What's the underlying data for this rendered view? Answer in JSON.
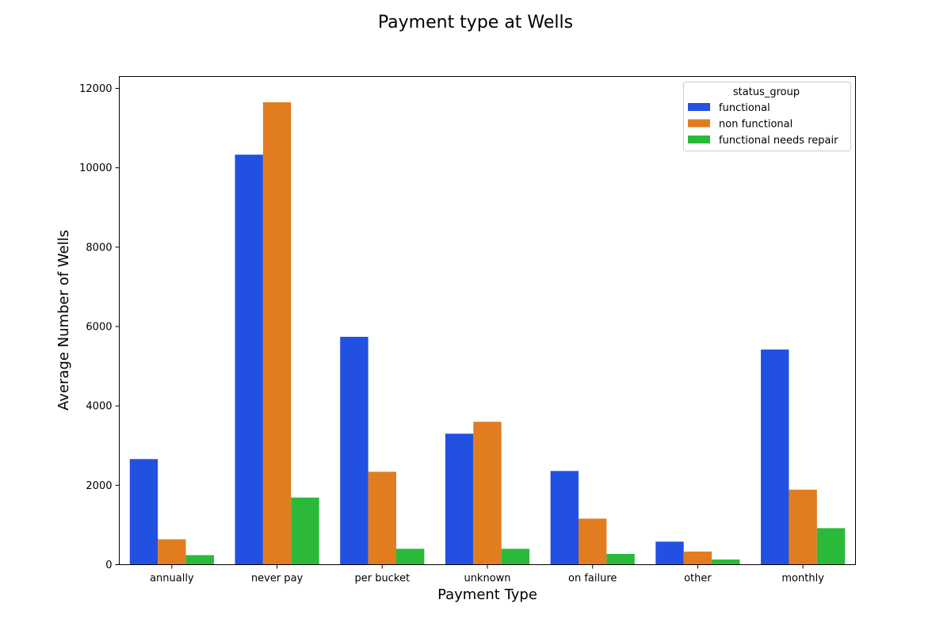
{
  "chart_data": {
    "type": "bar",
    "title": "Payment type at Wells",
    "xlabel": "Payment Type",
    "ylabel": "Average Number of Wells",
    "categories": [
      "annually",
      "never pay",
      "per bucket",
      "unknown",
      "on failure",
      "other",
      "monthly"
    ],
    "series": [
      {
        "name": "functional",
        "color": "#2250e0",
        "values": [
          2660,
          10330,
          5740,
          3300,
          2360,
          580,
          5420
        ]
      },
      {
        "name": "non functional",
        "color": "#e17d20",
        "values": [
          640,
          11650,
          2340,
          3600,
          1160,
          330,
          1890
        ]
      },
      {
        "name": "functional needs repair",
        "color": "#2bb93a",
        "values": [
          240,
          1690,
          400,
          400,
          270,
          130,
          920
        ]
      }
    ],
    "ylim": [
      0,
      12300
    ],
    "yticks": [
      0,
      2000,
      4000,
      6000,
      8000,
      10000,
      12000
    ],
    "legend": {
      "title": "status_group",
      "position": "top-right"
    },
    "grid": false
  }
}
